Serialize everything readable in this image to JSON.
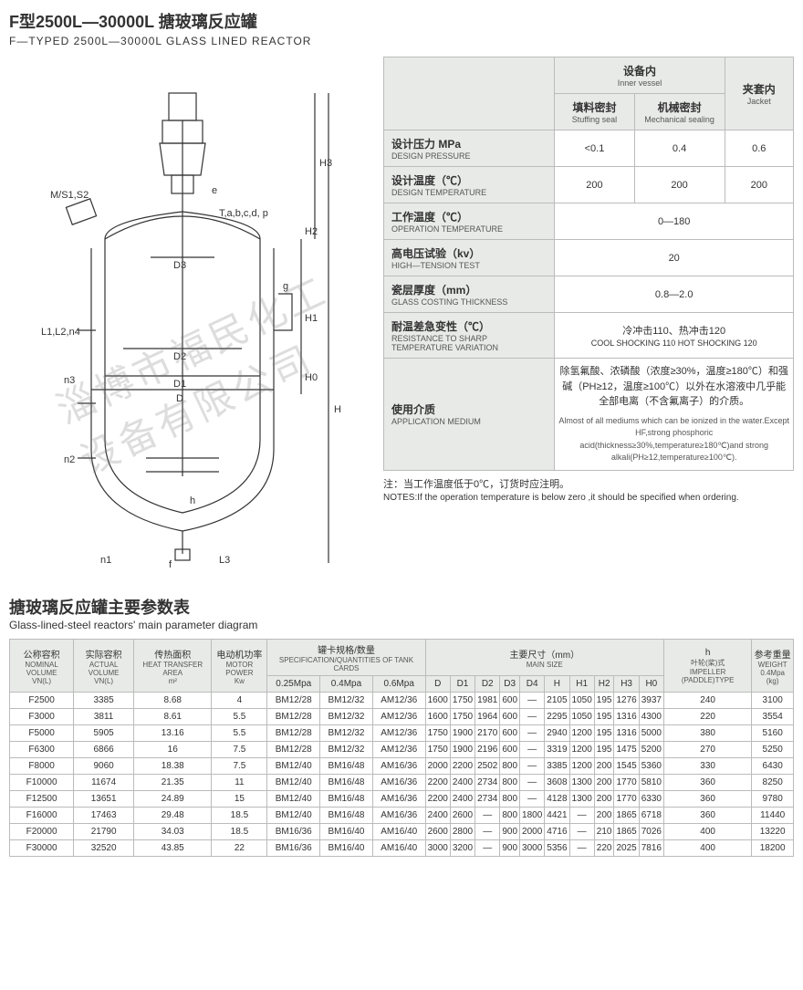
{
  "header": {
    "title_cn": "F型2500L—30000L 搪玻璃反应罐",
    "title_en": "F—TYPED 2500L—30000L GLASS LINED REACTOR"
  },
  "watermark": "淄博市福民化工设备有限公司",
  "diagram_labels": {
    "top_port": "M/S1,S2",
    "mid_label": "T,a,b,c,d, p",
    "e": "e",
    "g": "g",
    "f": "f",
    "h": "h",
    "D": "D",
    "D1": "D1",
    "D2": "D2",
    "D3": "D3",
    "H": "H",
    "H0": "H0",
    "H1": "H1",
    "H2": "H2",
    "H3": "H3",
    "L1": "L1,L2,n4",
    "L3": "L3",
    "n1": "n1",
    "n2": "n2",
    "n3": "n3"
  },
  "spec": {
    "header_inner_cn": "设备内",
    "header_inner_en": "Inner vessel",
    "header_jacket_cn": "夹套内",
    "header_jacket_en": "Jacket",
    "stuffing_cn": "填料密封",
    "stuffing_en": "Stuffing seal",
    "mech_cn": "机械密封",
    "mech_en": "Mechanical sealing",
    "rows": [
      {
        "cn": "设计压力 MPa",
        "en": "DESIGN PRESSURE",
        "v1": "<0.1",
        "v2": "0.4",
        "v3": "0.6"
      },
      {
        "cn": "设计温度（℃）",
        "en": "DESIGN TEMPERATURE",
        "v1": "200",
        "v2": "200",
        "v3": "200"
      },
      {
        "cn": "工作温度（℃）",
        "en": "OPERATION TEMPERATURE",
        "span": "0—180"
      },
      {
        "cn": "高电压试验（kv）",
        "en": "HIGH—TENSION TEST",
        "span": "20"
      },
      {
        "cn": "瓷层厚度（mm）",
        "en": "GLASS COSTING THICKNESS",
        "span": "0.8—2.0"
      },
      {
        "cn": "耐温差急变性（℃）",
        "en": "RESISTANCE TO SHARP TEMPERATURE VARIATION",
        "span": "冷冲击110、热冲击120",
        "span_en": "COOL SHOCKING 110 HOT SHOCKING 120"
      }
    ],
    "app_label_cn": "使用介质",
    "app_label_en": "APPLICATION MEDIUM",
    "app_cn": "除氢氟酸、浓磷酸（浓度≥30%，温度≥180℃）和强碱（PH≥12，温度≥100℃）以外在水溶液中几乎能全部电离（不含氟离子）的介质。",
    "app_en": "Almost of all mediums which can be ionized in the water.Except HF,strong phosphoric acid(thickness≥30%,temperature≥180℃)and strong alkali(PH≥12,temperature≥100℃)."
  },
  "note": {
    "cn": "注：当工作温度低于0℃，订货时应注明。",
    "en": "NOTES:If the operation temperature is below zero ,it should be specified when ordering."
  },
  "param_title": {
    "cn": "搪玻璃反应罐主要参数表",
    "en": "Glass-lined-steel reactors' main parameter diagram"
  },
  "param_headers": {
    "nominal_cn": "公称容积",
    "nominal_en": "NOMINAL VOLUME",
    "nominal_unit": "VN(L)",
    "actual_cn": "实际容积",
    "actual_en": "ACTUAL VOLUME",
    "actual_unit": "VN(L)",
    "heat_cn": "传热面积",
    "heat_en": "HEAT TRANSFER AREA",
    "heat_unit": "m²",
    "motor_cn": "电动机功率",
    "motor_en": "MOTOR POWER",
    "motor_unit": "Kw",
    "clamp_cn": "罐卡规格/数量",
    "clamp_en": "SPECIFICATION/QUANTITIES OF TANK CARDS",
    "main_cn": "主要尺寸（mm）",
    "main_en": "MAIN SIZE",
    "h_cn": "h",
    "h_en": "叶轮(桨)式",
    "h_en2": "IMPELLER (PADDLE)TYPE",
    "weight_cn": "参考重量",
    "weight_en": "WEIGHT",
    "weight_unit": "0.4Mpa (kg)",
    "p025": "0.25Mpa",
    "p04": "0.4Mpa",
    "p06": "0.6Mpa",
    "D": "D",
    "D1": "D1",
    "D2": "D2",
    "D3": "D3",
    "D4": "D4",
    "H": "H",
    "H1": "H1",
    "H2": "H2",
    "H3": "H3",
    "H0": "H0"
  },
  "param_rows": [
    [
      "F2500",
      "3385",
      "8.68",
      "4",
      "BM12/28",
      "BM12/32",
      "AM12/36",
      "1600",
      "1750",
      "1981",
      "600",
      "—",
      "2105",
      "1050",
      "195",
      "1276",
      "3937",
      "240",
      "3100"
    ],
    [
      "F3000",
      "3811",
      "8.61",
      "5.5",
      "BM12/28",
      "BM12/32",
      "AM12/36",
      "1600",
      "1750",
      "1964",
      "600",
      "—",
      "2295",
      "1050",
      "195",
      "1316",
      "4300",
      "220",
      "3554"
    ],
    [
      "F5000",
      "5905",
      "13.16",
      "5.5",
      "BM12/28",
      "BM12/32",
      "AM12/36",
      "1750",
      "1900",
      "2170",
      "600",
      "—",
      "2940",
      "1200",
      "195",
      "1316",
      "5000",
      "380",
      "5160"
    ],
    [
      "F6300",
      "6866",
      "16",
      "7.5",
      "BM12/28",
      "BM12/32",
      "AM12/36",
      "1750",
      "1900",
      "2196",
      "600",
      "—",
      "3319",
      "1200",
      "195",
      "1475",
      "5200",
      "270",
      "5250"
    ],
    [
      "F8000",
      "9060",
      "18.38",
      "7.5",
      "BM12/40",
      "BM16/48",
      "AM16/36",
      "2000",
      "2200",
      "2502",
      "800",
      "—",
      "3385",
      "1200",
      "200",
      "1545",
      "5360",
      "330",
      "6430"
    ],
    [
      "F10000",
      "11674",
      "21.35",
      "11",
      "BM12/40",
      "BM16/48",
      "AM16/36",
      "2200",
      "2400",
      "2734",
      "800",
      "—",
      "3608",
      "1300",
      "200",
      "1770",
      "5810",
      "360",
      "8250"
    ],
    [
      "F12500",
      "13651",
      "24.89",
      "15",
      "BM12/40",
      "BM16/48",
      "AM16/36",
      "2200",
      "2400",
      "2734",
      "800",
      "—",
      "4128",
      "1300",
      "200",
      "1770",
      "6330",
      "360",
      "9780"
    ],
    [
      "F16000",
      "17463",
      "29.48",
      "18.5",
      "BM12/40",
      "BM16/48",
      "AM16/36",
      "2400",
      "2600",
      "—",
      "800",
      "1800",
      "4421",
      "—",
      "200",
      "1865",
      "6718",
      "360",
      "11440"
    ],
    [
      "F20000",
      "21790",
      "34.03",
      "18.5",
      "BM16/36",
      "BM16/40",
      "AM16/40",
      "2600",
      "2800",
      "—",
      "900",
      "2000",
      "4716",
      "—",
      "210",
      "1865",
      "7026",
      "400",
      "13220"
    ],
    [
      "F30000",
      "32520",
      "43.85",
      "22",
      "BM16/36",
      "BM16/40",
      "AM16/40",
      "3000",
      "3200",
      "—",
      "900",
      "3000",
      "5356",
      "—",
      "220",
      "2025",
      "7816",
      "400",
      "18200"
    ]
  ]
}
